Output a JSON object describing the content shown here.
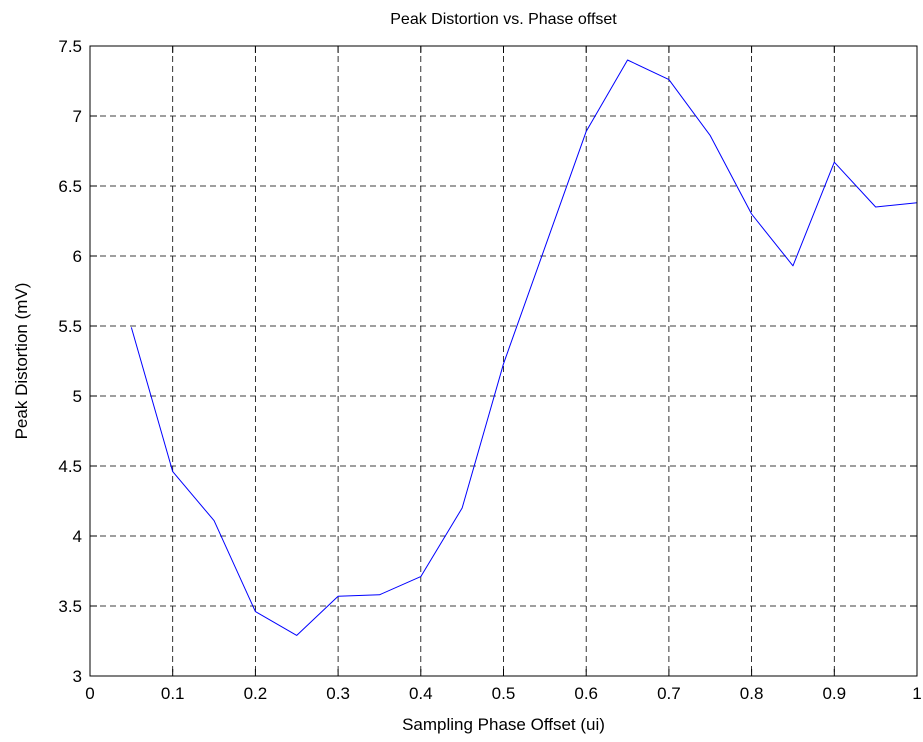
{
  "chart_data": {
    "type": "line",
    "title": "Peak Distortion vs. Phase offset",
    "xlabel": "Sampling Phase Offset (ui)",
    "ylabel": "Peak Distortion (mV)",
    "xlim": [
      0,
      1
    ],
    "ylim": [
      3,
      7.5
    ],
    "xticks": [
      0,
      0.1,
      0.2,
      0.3,
      0.4,
      0.5,
      0.6,
      0.7,
      0.8,
      0.9,
      1
    ],
    "xtick_labels": [
      "0",
      "0.1",
      "0.2",
      "0.3",
      "0.4",
      "0.5",
      "0.6",
      "0.7",
      "0.8",
      "0.9",
      "1"
    ],
    "yticks": [
      3,
      3.5,
      4,
      4.5,
      5,
      5.5,
      6,
      6.5,
      7,
      7.5
    ],
    "ytick_labels": [
      "3",
      "3.5",
      "4",
      "4.5",
      "5",
      "5.5",
      "6",
      "6.5",
      "7",
      "7.5"
    ],
    "grid": true,
    "grid_style": "dashed",
    "box": true,
    "series": [
      {
        "color": "#0000ff",
        "x": [
          0.05,
          0.1,
          0.15,
          0.2,
          0.25,
          0.3,
          0.35,
          0.4,
          0.45,
          0.5,
          0.55,
          0.6,
          0.65,
          0.7,
          0.75,
          0.8,
          0.85,
          0.9,
          0.95,
          1.0
        ],
        "y": [
          5.49,
          4.46,
          4.11,
          3.46,
          3.29,
          3.57,
          3.58,
          3.71,
          4.2,
          5.23,
          6.06,
          6.89,
          7.4,
          7.26,
          6.86,
          6.3,
          5.93,
          6.67,
          6.35,
          6.38
        ]
      }
    ]
  }
}
